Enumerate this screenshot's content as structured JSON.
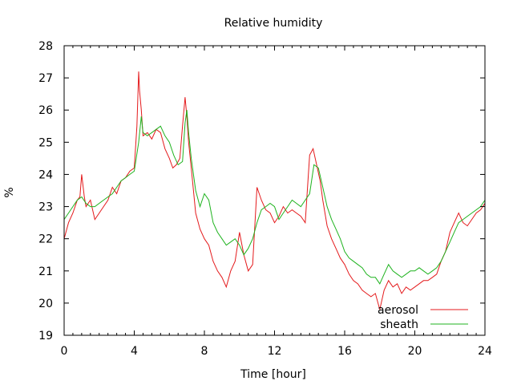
{
  "chart_data": {
    "type": "line",
    "title": "Relative humidity",
    "xlabel": "Time [hour]",
    "ylabel": "%",
    "xlim": [
      0,
      24
    ],
    "ylim": [
      19,
      28
    ],
    "xticks": [
      0,
      4,
      8,
      12,
      16,
      20,
      24
    ],
    "yticks": [
      19,
      20,
      21,
      22,
      23,
      24,
      25,
      26,
      27,
      28
    ],
    "grid": false,
    "legend_position": "bottom-right",
    "series": [
      {
        "name": "aerosol",
        "color": "#e41a1c",
        "x": [
          0,
          0.25,
          0.5,
          0.75,
          0.9,
          1.0,
          1.15,
          1.25,
          1.5,
          1.75,
          2.0,
          2.25,
          2.5,
          2.75,
          3.0,
          3.25,
          3.5,
          3.75,
          4.0,
          4.15,
          4.25,
          4.3,
          4.4,
          4.5,
          4.75,
          5.0,
          5.25,
          5.5,
          5.75,
          6.0,
          6.2,
          6.4,
          6.6,
          6.75,
          6.9,
          7.0,
          7.1,
          7.25,
          7.5,
          7.75,
          8.0,
          8.25,
          8.5,
          8.75,
          9.0,
          9.25,
          9.5,
          9.75,
          10.0,
          10.25,
          10.5,
          10.75,
          11.0,
          11.25,
          11.5,
          11.75,
          12.0,
          12.25,
          12.5,
          12.75,
          13.0,
          13.25,
          13.5,
          13.75,
          14.0,
          14.2,
          14.4,
          14.6,
          14.75,
          15.0,
          15.25,
          15.5,
          15.75,
          16.0,
          16.25,
          16.5,
          16.75,
          17.0,
          17.25,
          17.5,
          17.75,
          18.0,
          18.25,
          18.5,
          18.75,
          19.0,
          19.25,
          19.5,
          19.75,
          20.0,
          20.25,
          20.5,
          20.75,
          21.0,
          21.25,
          21.5,
          21.75,
          22.0,
          22.25,
          22.5,
          22.75,
          23.0,
          23.25,
          23.5,
          23.75,
          24.0
        ],
        "y": [
          22.0,
          22.5,
          22.8,
          23.2,
          23.3,
          24.0,
          23.3,
          23.0,
          23.2,
          22.6,
          22.8,
          23.0,
          23.2,
          23.6,
          23.4,
          23.8,
          23.9,
          24.1,
          24.2,
          25.5,
          27.2,
          26.6,
          26.0,
          25.2,
          25.3,
          25.1,
          25.4,
          25.3,
          24.8,
          24.5,
          24.2,
          24.3,
          24.5,
          25.5,
          26.4,
          25.8,
          25.0,
          24.2,
          22.8,
          22.3,
          22.0,
          21.8,
          21.3,
          21.0,
          20.8,
          20.5,
          21.0,
          21.3,
          22.2,
          21.5,
          21.0,
          21.2,
          23.6,
          23.2,
          22.9,
          22.8,
          22.5,
          22.7,
          23.0,
          22.8,
          22.9,
          22.8,
          22.7,
          22.5,
          24.6,
          24.8,
          24.3,
          23.8,
          23.2,
          22.4,
          22.0,
          21.7,
          21.4,
          21.2,
          20.9,
          20.7,
          20.6,
          20.4,
          20.3,
          20.2,
          20.3,
          19.8,
          20.4,
          20.7,
          20.5,
          20.6,
          20.3,
          20.5,
          20.4,
          20.5,
          20.6,
          20.7,
          20.7,
          20.8,
          20.9,
          21.3,
          21.6,
          22.2,
          22.5,
          22.8,
          22.5,
          22.4,
          22.6,
          22.8,
          22.9,
          23.1
        ]
      },
      {
        "name": "sheath",
        "color": "#1fb31f",
        "x": [
          0,
          0.25,
          0.5,
          0.75,
          1.0,
          1.25,
          1.5,
          1.75,
          2.0,
          2.25,
          2.5,
          2.75,
          3.0,
          3.25,
          3.5,
          3.75,
          4.0,
          4.25,
          4.4,
          4.5,
          4.75,
          5.0,
          5.25,
          5.5,
          5.75,
          6.0,
          6.25,
          6.5,
          6.75,
          6.9,
          7.0,
          7.1,
          7.25,
          7.5,
          7.75,
          8.0,
          8.25,
          8.5,
          8.75,
          9.0,
          9.25,
          9.5,
          9.75,
          10.0,
          10.25,
          10.5,
          10.75,
          11.0,
          11.25,
          11.5,
          11.75,
          12.0,
          12.25,
          12.5,
          12.75,
          13.0,
          13.25,
          13.5,
          13.75,
          14.0,
          14.25,
          14.5,
          14.75,
          15.0,
          15.25,
          15.5,
          15.75,
          16.0,
          16.25,
          16.5,
          16.75,
          17.0,
          17.25,
          17.5,
          17.75,
          18.0,
          18.25,
          18.5,
          18.75,
          19.0,
          19.25,
          19.5,
          19.75,
          20.0,
          20.25,
          20.5,
          20.75,
          21.0,
          21.25,
          21.5,
          21.75,
          22.0,
          22.25,
          22.5,
          22.75,
          23.0,
          23.25,
          23.5,
          23.75,
          24.0
        ],
        "y": [
          22.6,
          22.8,
          23.0,
          23.2,
          23.3,
          23.1,
          23.0,
          23.0,
          23.1,
          23.2,
          23.3,
          23.4,
          23.6,
          23.8,
          23.9,
          24.0,
          24.1,
          25.0,
          25.8,
          25.3,
          25.2,
          25.3,
          25.4,
          25.5,
          25.2,
          25.0,
          24.6,
          24.3,
          24.4,
          25.6,
          26.0,
          25.3,
          24.5,
          23.5,
          23.0,
          23.4,
          23.2,
          22.5,
          22.2,
          22.0,
          21.8,
          21.9,
          22.0,
          21.8,
          21.5,
          21.7,
          22.0,
          22.5,
          22.9,
          23.0,
          23.1,
          23.0,
          22.6,
          22.8,
          23.0,
          23.2,
          23.1,
          23.0,
          23.2,
          23.4,
          24.3,
          24.2,
          23.6,
          23.0,
          22.6,
          22.3,
          22.0,
          21.6,
          21.4,
          21.3,
          21.2,
          21.1,
          20.9,
          20.8,
          20.8,
          20.6,
          20.9,
          21.2,
          21.0,
          20.9,
          20.8,
          20.9,
          21.0,
          21.0,
          21.1,
          21.0,
          20.9,
          21.0,
          21.1,
          21.3,
          21.6,
          21.9,
          22.2,
          22.5,
          22.6,
          22.7,
          22.8,
          22.9,
          23.0,
          23.2
        ]
      }
    ]
  }
}
